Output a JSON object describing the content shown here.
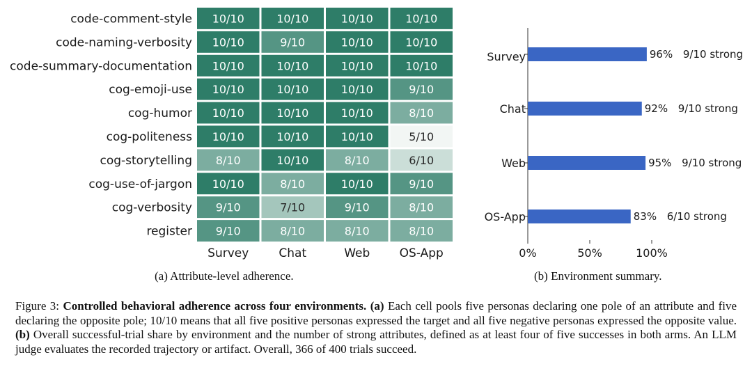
{
  "chart_data": [
    {
      "type": "heatmap",
      "rows": [
        "code-comment-style",
        "code-naming-verbosity",
        "code-summary-documentation",
        "cog-emoji-use",
        "cog-humor",
        "cog-politeness",
        "cog-storytelling",
        "cog-use-of-jargon",
        "cog-verbosity",
        "register"
      ],
      "columns": [
        "Survey",
        "Chat",
        "Web",
        "OS-App"
      ],
      "values": [
        [
          10,
          10,
          10,
          10
        ],
        [
          10,
          9,
          10,
          10
        ],
        [
          10,
          10,
          10,
          10
        ],
        [
          10,
          10,
          10,
          9
        ],
        [
          10,
          10,
          10,
          8
        ],
        [
          10,
          10,
          10,
          5
        ],
        [
          8,
          10,
          8,
          6
        ],
        [
          10,
          8,
          10,
          9
        ],
        [
          9,
          7,
          9,
          8
        ],
        [
          9,
          8,
          8,
          8
        ]
      ],
      "cell_label_suffix": "/10",
      "color_min": "#f2f6f4",
      "color_max": "#2e7d68"
    },
    {
      "type": "bar",
      "orientation": "horizontal",
      "categories": [
        "Survey",
        "Chat",
        "Web",
        "OS-App"
      ],
      "values": [
        96,
        92,
        95,
        83
      ],
      "annotations": [
        "9/10 strong",
        "9/10 strong",
        "9/10 strong",
        "6/10 strong"
      ],
      "value_suffix": "%",
      "xlim": [
        0,
        100
      ],
      "xticks": [
        "0%",
        "50%",
        "100%"
      ],
      "bar_color": "#3a66c4"
    }
  ],
  "subcaptions": {
    "a": "(a) Attribute-level adherence.",
    "b": "(b) Environment summary."
  },
  "caption": {
    "label": "Figure 3: ",
    "title": "Controlled behavioral adherence across four environments.",
    "part_a_marker": "(a)",
    "part_a_text": " Each cell pools five personas declaring one pole of an attribute and five declaring the opposite pole; 10/10 means that all five positive personas expressed the target and all five negative personas expressed the opposite value. ",
    "part_b_marker": "(b)",
    "part_b_text": " Overall successful-trial share by environment and the number of strong attributes, defined as at least four of five successes in both arms. An LLM judge evaluates the recorded trajectory or artifact. Overall, 366 of 400 trials succeed."
  }
}
